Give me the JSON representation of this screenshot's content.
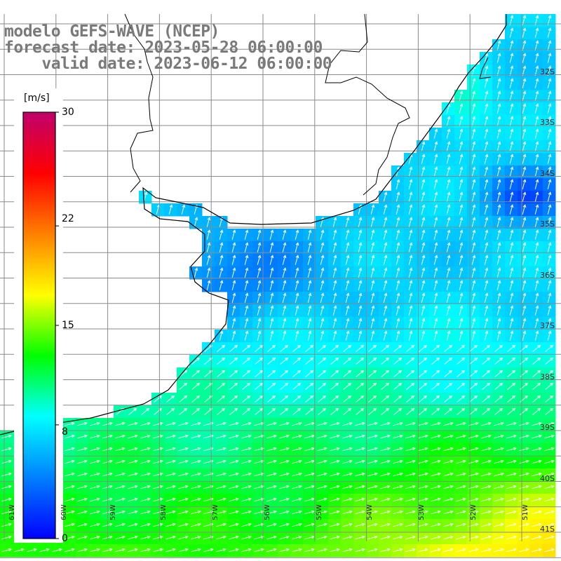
{
  "title": {
    "line1": "modelo GEFS-WAVE (NCEP)",
    "line2": "forecast date: 2023-05-28 06:00:00",
    "line3": "    valid date: 2023-06-12 06:00:00"
  },
  "colorbar": {
    "units": "[m/s]",
    "ticks": [
      {
        "label": "30",
        "value": 30
      },
      {
        "label": "22",
        "value": 22
      },
      {
        "label": "15",
        "value": 15
      },
      {
        "label": "8",
        "value": 8
      },
      {
        "label": "0",
        "value": 0
      }
    ],
    "colors": [
      "#0000ff",
      "#0080ff",
      "#00ffff",
      "#00ff00",
      "#ffff00",
      "#ff8000",
      "#ff0000",
      "#c0006c"
    ]
  },
  "grid": {
    "lon_labels": [
      "61W",
      "60W",
      "59W",
      "58W",
      "57W",
      "56W",
      "55W",
      "54W",
      "53W",
      "52W",
      "51W"
    ],
    "lat_labels": [
      "32S",
      "33S",
      "34S",
      "35S",
      "36S",
      "37S",
      "38S",
      "39S",
      "40S",
      "41S"
    ]
  },
  "colors": {
    "land": "#ffffff",
    "coast": "#000000",
    "grid": "#8a8a8a",
    "arrows": "#ffffff",
    "title_text": "#7a7a7a"
  }
}
